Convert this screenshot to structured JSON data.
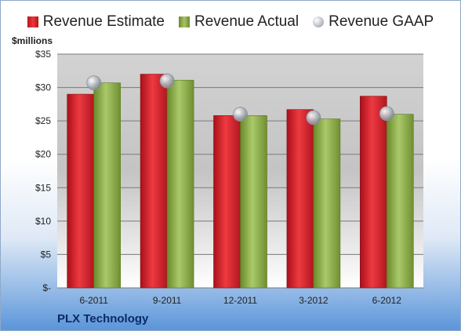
{
  "chart_data": {
    "type": "bar",
    "title": "",
    "ylabel": "$millions",
    "xlabel": "",
    "company": "PLX Technology",
    "categories": [
      "6-2011",
      "9-2011",
      "12-2011",
      "3-2012",
      "6-2012"
    ],
    "series": [
      {
        "name": "Revenue Estimate",
        "type": "bar",
        "color": "#d9252b",
        "values": [
          29.0,
          32.0,
          25.8,
          26.7,
          28.7
        ]
      },
      {
        "name": "Revenue Actual",
        "type": "bar",
        "color": "#8fb04a",
        "values": [
          30.7,
          31.1,
          25.8,
          25.3,
          26.0
        ]
      },
      {
        "name": "Revenue GAAP",
        "type": "marker",
        "color": "#b9bec6",
        "values": [
          30.7,
          31.0,
          26.0,
          25.5,
          26.1
        ]
      }
    ],
    "ylim": [
      0,
      35
    ],
    "yticks": [
      0,
      5,
      10,
      15,
      20,
      25,
      30,
      35
    ],
    "ytick_labels": [
      "$-",
      "$5",
      "$10",
      "$15",
      "$20",
      "$25",
      "$30",
      "$35"
    ],
    "grid": true,
    "legend": "top"
  }
}
